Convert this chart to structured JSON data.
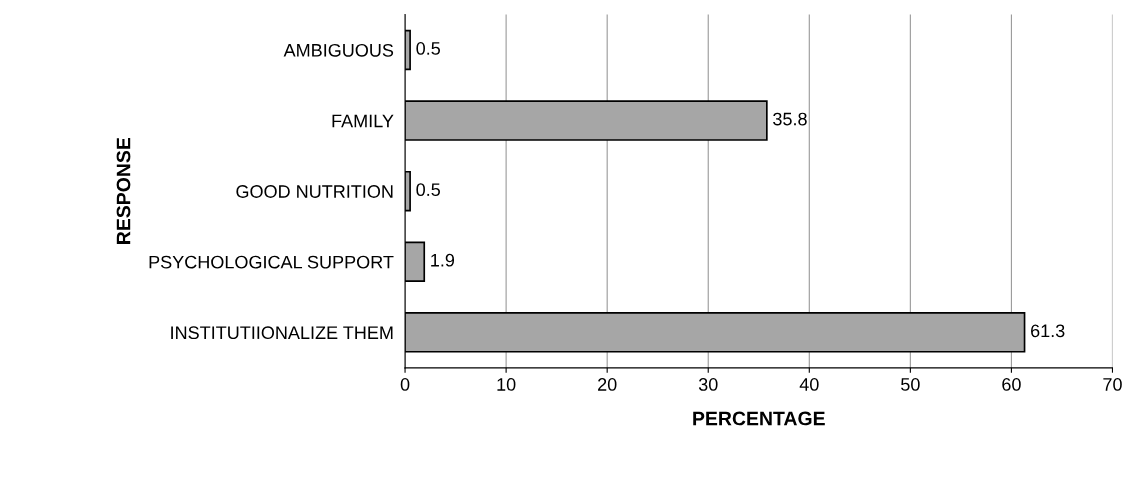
{
  "chart_data": {
    "type": "bar",
    "orientation": "horizontal",
    "xlabel": "PERCENTAGE",
    "ylabel": "RESPONSE",
    "categories": [
      "AMBIGUOUS",
      "FAMILY",
      "GOOD NUTRITION",
      "PSYCHOLOGICAL SUPPORT",
      "INSTITUTIIONALIZE THEM"
    ],
    "values": [
      0.5,
      35.8,
      0.5,
      1.9,
      61.3
    ],
    "color": "#a6a6a6",
    "xlim": [
      0,
      70
    ],
    "xticks": [
      0,
      10,
      20,
      30,
      40,
      50,
      60,
      70
    ],
    "grid": "x",
    "data_labels": true
  }
}
